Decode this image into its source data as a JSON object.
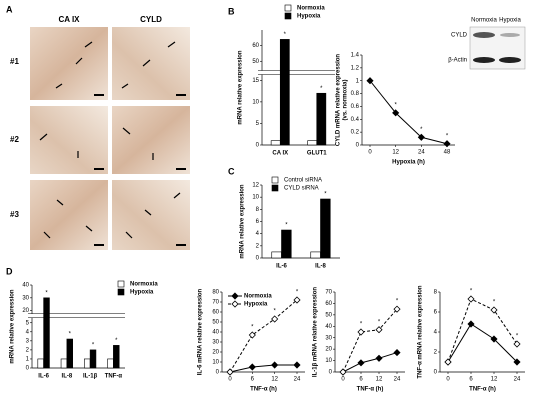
{
  "panel_labels": [
    "A",
    "B",
    "C",
    "D"
  ],
  "histology": {
    "columns": [
      "CA IX",
      "CYLD"
    ],
    "rows": [
      "#1",
      "#2",
      "#3"
    ]
  },
  "inset_blot": {
    "columns": [
      "Normoxia",
      "Hypoxia"
    ],
    "rows": [
      "CYLD",
      "β-Actin"
    ]
  },
  "chart_data": [
    {
      "type": "bar",
      "ylabel": "mRNA relative expression",
      "categories": [
        "CA IX",
        "GLUT1"
      ],
      "ylim": [
        0,
        70
      ],
      "axis_break": [
        16,
        45
      ],
      "yticks": [
        0,
        5,
        10,
        15,
        50,
        60
      ],
      "series": [
        {
          "name": "Normoxia",
          "color": "#ffffff",
          "values": [
            1,
            1
          ]
        },
        {
          "name": "Hypoxia",
          "color": "#000000",
          "values": [
            64,
            12
          ],
          "significance": [
            "*",
            "*"
          ]
        }
      ]
    },
    {
      "type": "line",
      "ylabel": [
        "CYLD mRNA relative expression",
        "(vs. normoxia)"
      ],
      "xlabel": "Hypoxia (h)",
      "categories": [
        "0",
        "12",
        "24",
        "48"
      ],
      "ylim": [
        0,
        1.4
      ],
      "yticks": [
        0,
        0.2,
        0.4,
        0.6,
        0.8,
        1,
        1.2,
        1.4
      ],
      "series": [
        {
          "color": "#000000",
          "marker": "filled",
          "values": [
            1,
            0.5,
            0.12,
            0.02
          ],
          "significance": [
            null,
            "*",
            "*",
            "*"
          ]
        }
      ]
    },
    {
      "type": "bar",
      "ylabel": "mRNA relative expression",
      "categories": [
        "IL-6",
        "IL-8"
      ],
      "ylim": [
        0,
        12
      ],
      "yticks": [
        0,
        2,
        4,
        6,
        8,
        10,
        12
      ],
      "series": [
        {
          "name": "Control siRNA",
          "color": "#ffffff",
          "values": [
            1,
            1
          ]
        },
        {
          "name": "CYLD siRNA",
          "color": "#000000",
          "values": [
            4.6,
            9.7
          ],
          "significance": [
            "*",
            "*"
          ]
        }
      ]
    },
    {
      "type": "bar",
      "ylabel": "mRNA relative expression",
      "categories": [
        "IL-6",
        "IL-8",
        "IL-1β",
        "TNF-α"
      ],
      "ylim": [
        0,
        40
      ],
      "axis_break": [
        5.5,
        18
      ],
      "yticks": [
        0,
        1,
        2,
        3,
        4,
        5,
        20,
        30,
        40
      ],
      "series": [
        {
          "name": "Normoxia",
          "color": "#ffffff",
          "values": [
            1,
            1,
            1,
            1
          ]
        },
        {
          "name": "Hypoxia",
          "color": "#000000",
          "values": [
            30,
            3.2,
            2,
            2.5
          ],
          "significance": [
            "*",
            "*",
            "*",
            "*"
          ]
        }
      ]
    },
    {
      "type": "line",
      "ylabel": "IL-6 mRNA relative expression",
      "xlabel": "TNF-α (h)",
      "categories": [
        "0",
        "6",
        "12",
        "24"
      ],
      "ylim": [
        0,
        80
      ],
      "yticks": [
        0,
        10,
        20,
        30,
        40,
        50,
        60,
        70,
        80
      ],
      "series": [
        {
          "name": "Normoxia",
          "color": "#000000",
          "marker": "filled",
          "values": [
            0,
            5,
            7,
            7
          ]
        },
        {
          "name": "Hypoxia",
          "color": "#000000",
          "marker": "open",
          "dash": true,
          "values": [
            0,
            37,
            53,
            72
          ],
          "significance": [
            null,
            "*",
            "*",
            "*"
          ]
        }
      ]
    },
    {
      "type": "line",
      "ylabel": "IL-1β mRNA relative expression",
      "xlabel": "TNF-α (h)",
      "categories": [
        "0",
        "6",
        "12",
        "24"
      ],
      "ylim": [
        0,
        70
      ],
      "yticks": [
        0,
        10,
        20,
        30,
        40,
        50,
        60,
        70
      ],
      "series": [
        {
          "color": "#000000",
          "marker": "filled",
          "values": [
            0,
            8,
            12,
            17
          ]
        },
        {
          "color": "#000000",
          "marker": "open",
          "dash": true,
          "values": [
            0,
            35,
            37,
            55
          ],
          "significance": [
            null,
            "*",
            "*",
            "*"
          ]
        }
      ]
    },
    {
      "type": "line",
      "ylabel": "TNF-α mRNA relative expression",
      "xlabel": "TNF-α (h)",
      "categories": [
        "0",
        "6",
        "12",
        "24"
      ],
      "ylim": [
        0,
        8
      ],
      "yticks": [
        0,
        2,
        4,
        6,
        8
      ],
      "series": [
        {
          "color": "#000000",
          "marker": "filled",
          "values": [
            1,
            4.8,
            3.3,
            1
          ]
        },
        {
          "color": "#000000",
          "marker": "open",
          "dash": true,
          "values": [
            1,
            7.3,
            6.2,
            2.8
          ],
          "significance": [
            null,
            "*",
            "*",
            "*"
          ]
        }
      ]
    }
  ]
}
